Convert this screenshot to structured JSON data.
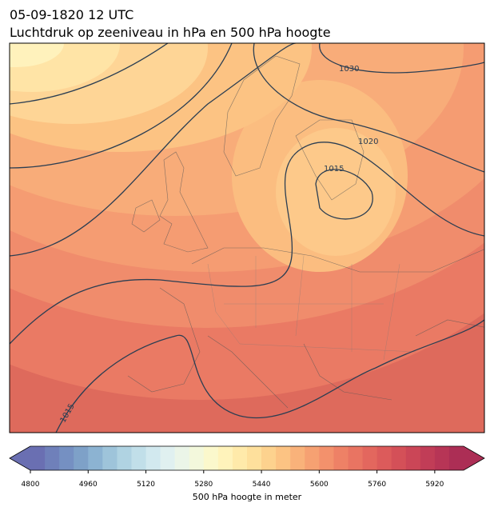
{
  "header": {
    "title": "05-09-1820 12 UTC",
    "subtitle": "Luchtdruk op zeeniveau in hPa en 500 hPa hoogte"
  },
  "map": {
    "contour_labels": [
      1030,
      1020,
      1015,
      1015
    ]
  },
  "colorbar": {
    "label": "500 hPa hoogte in meter",
    "lim": [
      4800,
      6000
    ],
    "ticks": [
      4800,
      4960,
      5120,
      5280,
      5440,
      5600,
      5760,
      5920
    ],
    "extend": "both",
    "colors": [
      "#6a6fb2",
      "#6f80ba",
      "#7590c2",
      "#7ea1c8",
      "#8cb3d2",
      "#9ec4da",
      "#b0d3e2",
      "#c1dfe9",
      "#d2e9ef",
      "#e0f0f0",
      "#ebf5e8",
      "#f3f8dc",
      "#fbf8cc",
      "#fff3bb",
      "#ffeaaa",
      "#fee09c",
      "#fdd28e",
      "#fcc383",
      "#f9b27a",
      "#f6a172",
      "#f3916c",
      "#ee8166",
      "#e97462",
      "#e3675e",
      "#dc5b5b",
      "#d45058",
      "#cb4657",
      "#c13d57",
      "#b73556",
      "#ac2e55"
    ]
  }
}
